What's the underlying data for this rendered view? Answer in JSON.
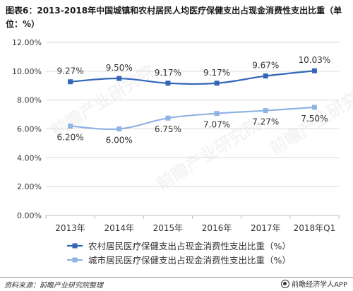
{
  "title": "图表6：2013-2018年中国城镇和农村居民人均医疗保健支出占现金消费性支出比重（单位：%）",
  "source": "资料来源：前瞻产业研究院整理",
  "brand": "前瞻经济学人APP",
  "watermark": "前瞻产业研究院",
  "colors": {
    "rural": "#3366b8",
    "urban": "#8fb4e3",
    "grid": "#d9d9d9",
    "axis": "#bfbfbf",
    "text": "#333333"
  },
  "chart_data": {
    "type": "line",
    "categories": [
      "2013年",
      "2014年",
      "2015年",
      "2016年",
      "2017年",
      "2018年Q1"
    ],
    "ylim": [
      0,
      12
    ],
    "yticks": [
      "0.00%",
      "2.00%",
      "4.00%",
      "6.00%",
      "8.00%",
      "10.00%",
      "12.00%"
    ],
    "grid": true,
    "legend_position": "bottom",
    "series": [
      {
        "name": "农村居民医疗保健支出占现金消费性支出比重（%）",
        "values": [
          9.27,
          9.5,
          9.17,
          9.17,
          9.67,
          10.03
        ],
        "labels": [
          "9.27%",
          "9.50%",
          "9.17%",
          "9.17%",
          "9.67%",
          "10.03%"
        ],
        "color": "#3366b8"
      },
      {
        "name": "城市居民医疗保健支出占现金消费性支出比重（%）",
        "values": [
          6.2,
          6.0,
          6.75,
          7.07,
          7.27,
          7.5
        ],
        "labels": [
          "6.20%",
          "6.00%",
          "6.75%",
          "7.07%",
          "7.27%",
          "7.50%"
        ],
        "color": "#8fb4e3"
      }
    ]
  }
}
